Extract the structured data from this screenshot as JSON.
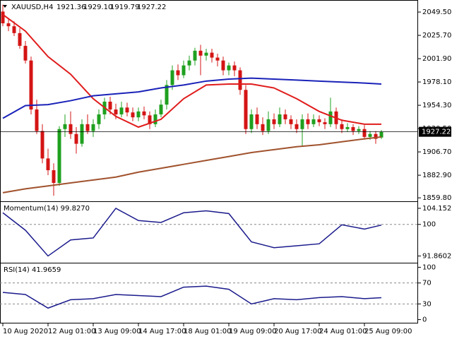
{
  "chart_data": [
    {
      "type": "candlestick",
      "title": "XAUUSD,H4",
      "last_labels": [
        "1921.36",
        "1929.10",
        "1919.79",
        "1927.22"
      ],
      "categories": [
        "10 Aug 2020",
        null,
        null,
        null,
        null,
        null,
        null,
        null,
        "12 Aug 01:00",
        null,
        null,
        null,
        null,
        null,
        null,
        null,
        "13 Aug 09:00",
        null,
        null,
        null,
        null,
        null,
        null,
        null,
        "14 Aug 17:00",
        null,
        null,
        null,
        null,
        null,
        null,
        null,
        "18 Aug 01:00",
        null,
        null,
        null,
        null,
        null,
        null,
        null,
        "19 Aug 09:00",
        null,
        null,
        null,
        null,
        null,
        null,
        null,
        "20 Aug 17:00",
        null,
        null,
        null,
        null,
        null,
        null,
        null,
        "24 Aug 01:00",
        null,
        null,
        null,
        null,
        null,
        null,
        null,
        "25 Aug 09:00",
        null,
        null,
        null
      ],
      "candles": [
        [
          2050,
          2057,
          2035,
          2038
        ],
        [
          2038,
          2042,
          2030,
          2035
        ],
        [
          2035,
          2040,
          2025,
          2028
        ],
        [
          2028,
          2033,
          2012,
          2015
        ],
        [
          2015,
          2020,
          1997,
          2000
        ],
        [
          2000,
          2004,
          1945,
          1950
        ],
        [
          1950,
          1960,
          1925,
          1928
        ],
        [
          1928,
          1935,
          1895,
          1900
        ],
        [
          1900,
          1910,
          1883,
          1888
        ],
        [
          1888,
          1895,
          1862,
          1875
        ],
        [
          1875,
          1933,
          1872,
          1930
        ],
        [
          1930,
          1945,
          1922,
          1935
        ],
        [
          1935,
          1948,
          1920,
          1925
        ],
        [
          1925,
          1932,
          1905,
          1915
        ],
        [
          1915,
          1940,
          1912,
          1935
        ],
        [
          1935,
          1945,
          1925,
          1928
        ],
        [
          1928,
          1940,
          1922,
          1935
        ],
        [
          1935,
          1950,
          1930,
          1945
        ],
        [
          1945,
          1962,
          1940,
          1958
        ],
        [
          1958,
          1963,
          1945,
          1950
        ],
        [
          1950,
          1956,
          1940,
          1945
        ],
        [
          1945,
          1958,
          1942,
          1952
        ],
        [
          1952,
          1957,
          1943,
          1947
        ],
        [
          1947,
          1952,
          1938,
          1942
        ],
        [
          1942,
          1952,
          1938,
          1948
        ],
        [
          1948,
          1953,
          1940,
          1944
        ],
        [
          1944,
          1948,
          1930,
          1935
        ],
        [
          1935,
          1950,
          1932,
          1945
        ],
        [
          1945,
          1960,
          1942,
          1955
        ],
        [
          1955,
          1980,
          1950,
          1975
        ],
        [
          1975,
          1995,
          1970,
          1990
        ],
        [
          1990,
          1996,
          1980,
          1985
        ],
        [
          1985,
          2000,
          1982,
          1995
        ],
        [
          1995,
          2005,
          1990,
          2000
        ],
        [
          2000,
          2013,
          1995,
          2010
        ],
        [
          2010,
          2016,
          1985,
          2005
        ],
        [
          2005,
          2012,
          2000,
          2008
        ],
        [
          2008,
          2012,
          1998,
          2003
        ],
        [
          2003,
          2007,
          1994,
          2000
        ],
        [
          2000,
          2004,
          1985,
          1990
        ],
        [
          1990,
          1998,
          1985,
          1995
        ],
        [
          1995,
          1999,
          1984,
          1990
        ],
        [
          1990,
          1993,
          1965,
          1970
        ],
        [
          1970,
          1975,
          1925,
          1930
        ],
        [
          1930,
          1950,
          1926,
          1945
        ],
        [
          1945,
          1952,
          1930,
          1935
        ],
        [
          1935,
          1942,
          1924,
          1928
        ],
        [
          1928,
          1948,
          1925,
          1940
        ],
        [
          1940,
          1946,
          1930,
          1935
        ],
        [
          1935,
          1952,
          1932,
          1945
        ],
        [
          1945,
          1950,
          1935,
          1940
        ],
        [
          1940,
          1944,
          1930,
          1935
        ],
        [
          1935,
          1940,
          1926,
          1930
        ],
        [
          1930,
          1945,
          1912,
          1940
        ],
        [
          1940,
          1946,
          1930,
          1935
        ],
        [
          1935,
          1945,
          1932,
          1940
        ],
        [
          1940,
          1944,
          1933,
          1937
        ],
        [
          1937,
          1941,
          1930,
          1935
        ],
        [
          1935,
          1962,
          1932,
          1948
        ],
        [
          1948,
          1952,
          1930,
          1935
        ],
        [
          1935,
          1940,
          1926,
          1930
        ],
        [
          1930,
          1936,
          1927,
          1932
        ],
        [
          1932,
          1935,
          1924,
          1928
        ],
        [
          1928,
          1933,
          1925,
          1930
        ],
        [
          1930,
          1934,
          1920,
          1922
        ],
        [
          1922,
          1928,
          1919,
          1925
        ],
        [
          1925,
          1928,
          1915,
          1920
        ],
        [
          1921.36,
          1929.1,
          1919.79,
          1927.22
        ]
      ],
      "up_color": "#1fa01f",
      "down_color": "#d41414",
      "ylim": [
        1857,
        2061.8
      ],
      "yticks": [
        {
          "value": 2049.5,
          "label": "2049.50"
        },
        {
          "value": 2025.7,
          "label": "2025.70"
        },
        {
          "value": 2001.9,
          "label": "2001.90"
        },
        {
          "value": 1978.1,
          "label": "1978.10"
        },
        {
          "value": 1954.3,
          "label": "1954.30"
        },
        {
          "value": 1930.5,
          "label": "1930.50"
        },
        {
          "value": 1906.7,
          "label": "1906.70"
        },
        {
          "value": 1882.9,
          "label": "1882.90"
        },
        {
          "value": 1859.8,
          "label": "1859.80"
        }
      ],
      "lines": [
        {
          "color": "#e01c1c",
          "x": [
            0,
            4,
            8,
            12,
            16,
            20,
            24,
            28,
            32,
            36,
            40,
            44,
            48,
            52,
            56,
            60,
            64,
            67
          ],
          "values": [
            2047,
            2030,
            2004,
            1986,
            1961,
            1943,
            1932,
            1940,
            1961,
            1975,
            1976,
            1976,
            1972,
            1961,
            1948,
            1939,
            1935,
            1935
          ]
        },
        {
          "color": "#1a22b8",
          "x": [
            0,
            4,
            8,
            12,
            16,
            20,
            24,
            28,
            32,
            36,
            40,
            44,
            48,
            52,
            56,
            60,
            64,
            67
          ],
          "values": [
            1941,
            1954,
            1955,
            1959,
            1964,
            1966,
            1968,
            1972,
            1975,
            1979,
            1981,
            1982,
            1981,
            1980,
            1979,
            1978,
            1977,
            1976
          ]
        },
        {
          "color": "#a0522d",
          "x": [
            0,
            4,
            8,
            12,
            16,
            20,
            24,
            28,
            32,
            36,
            40,
            44,
            48,
            52,
            56,
            60,
            64,
            67
          ],
          "values": [
            1865,
            1869,
            1872,
            1875,
            1878,
            1881,
            1886,
            1890,
            1894,
            1898,
            1902,
            1906,
            1909,
            1912,
            1914,
            1917,
            1920,
            1922
          ]
        }
      ]
    },
    {
      "type": "line",
      "title": "Momentum(14) 99.8270",
      "color": "#1a1a8c",
      "x": [
        0,
        4,
        8,
        12,
        16,
        20,
        24,
        28,
        32,
        36,
        40,
        44,
        48,
        52,
        56,
        60,
        64,
        67
      ],
      "values": [
        103,
        98.5,
        91.8602,
        96,
        96.5,
        104.1523,
        101,
        100.5,
        103,
        103.5,
        102.8,
        95.5,
        94,
        94.5,
        95,
        99.9,
        98.8,
        99.827
      ],
      "ylim": [
        90.3,
        105.6
      ],
      "yticks": [
        104.1523,
        100,
        91.8602
      ],
      "levels": [
        100
      ]
    },
    {
      "type": "line",
      "title": "RSI(14) 41.9659",
      "color": "#1a1a8c",
      "x": [
        0,
        4,
        8,
        12,
        16,
        20,
        24,
        28,
        32,
        36,
        40,
        44,
        48,
        52,
        56,
        60,
        64,
        67
      ],
      "values": [
        52,
        48,
        22,
        38,
        40,
        48,
        46,
        44,
        62,
        64,
        58,
        30,
        40,
        38,
        42,
        44,
        40,
        41.9659
      ],
      "ylim": [
        -6,
        106
      ],
      "yticks": [
        100,
        70,
        30,
        0
      ],
      "levels": [
        70,
        30
      ]
    }
  ]
}
